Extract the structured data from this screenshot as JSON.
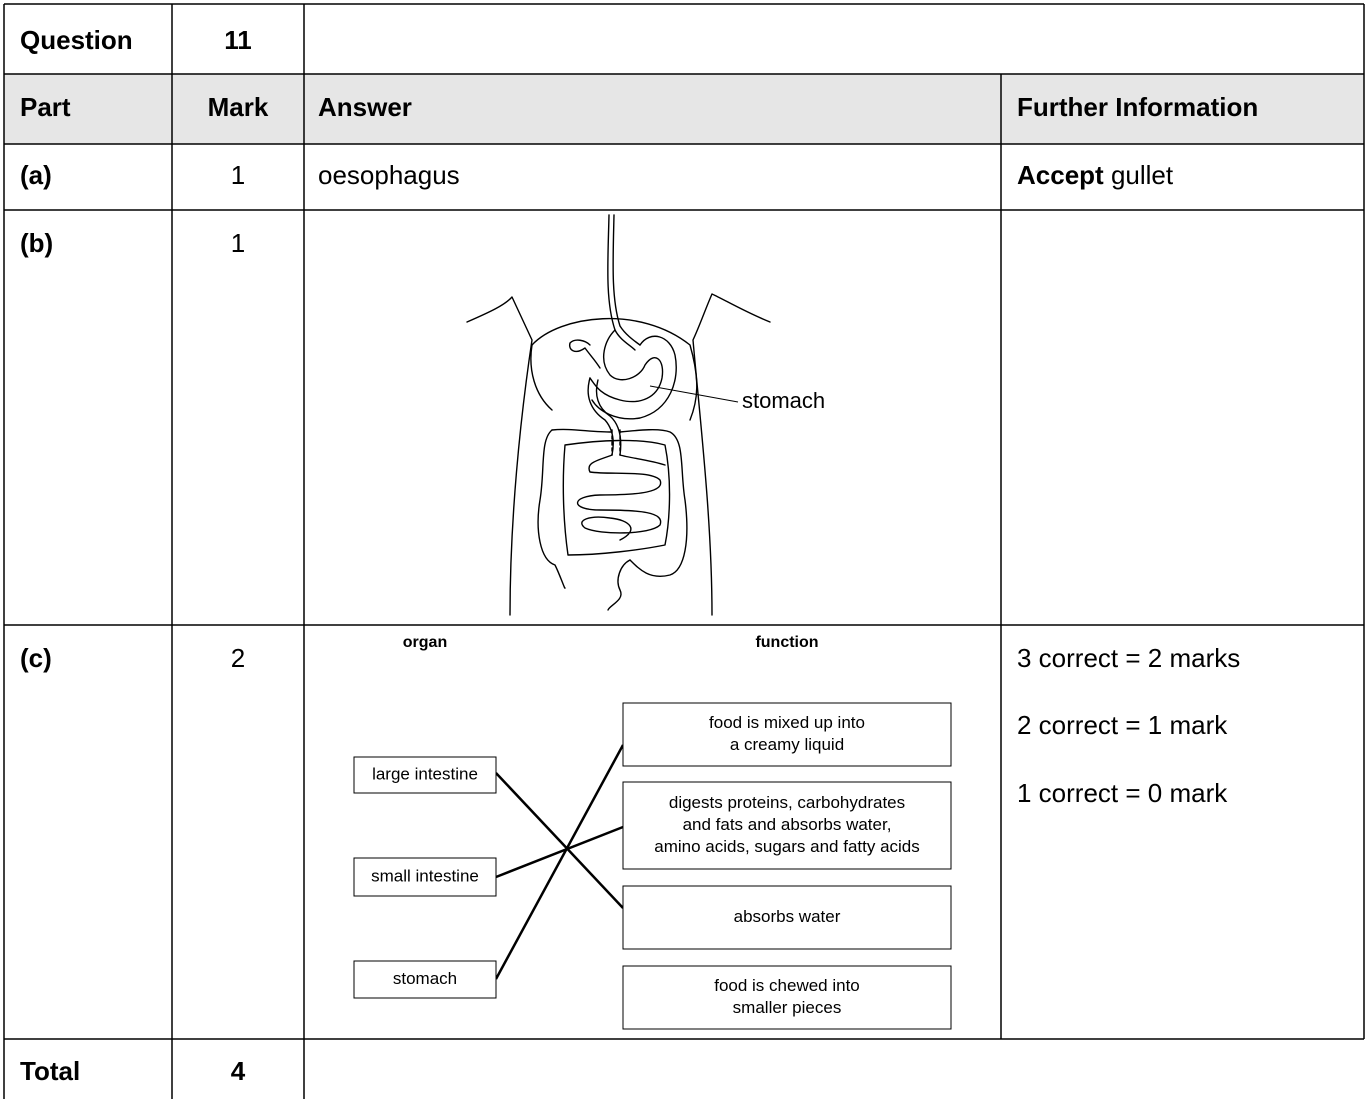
{
  "header": {
    "question_label": "Question",
    "question_number": 11
  },
  "columns": [
    "Part",
    "Mark",
    "Answer",
    "Further Information"
  ],
  "rows": [
    {
      "part": "(a)",
      "mark": 1,
      "answer": "oesophagus",
      "info_bold": "Accept",
      "info": "gullet"
    },
    {
      "part": "(b)",
      "mark": 1,
      "diagram_label": "stomach"
    },
    {
      "part": "(c)",
      "mark": 2,
      "organ_heading": "organ",
      "function_heading": "function",
      "organs": [
        "large intestine",
        "small intestine",
        "stomach"
      ],
      "functions": [
        [
          "food is mixed up into",
          "a creamy liquid"
        ],
        [
          "digests proteins, carbohydrates",
          "and fats and absorbs water,",
          "amino acids, sugars and fatty acids"
        ],
        [
          "absorbs water"
        ],
        [
          "food is chewed into",
          "smaller pieces"
        ]
      ],
      "info_lines": [
        "3 correct = 2 marks",
        "2 correct = 1 mark",
        "1 correct = 0 mark"
      ]
    }
  ],
  "total": {
    "label": "Total",
    "mark": 4
  }
}
